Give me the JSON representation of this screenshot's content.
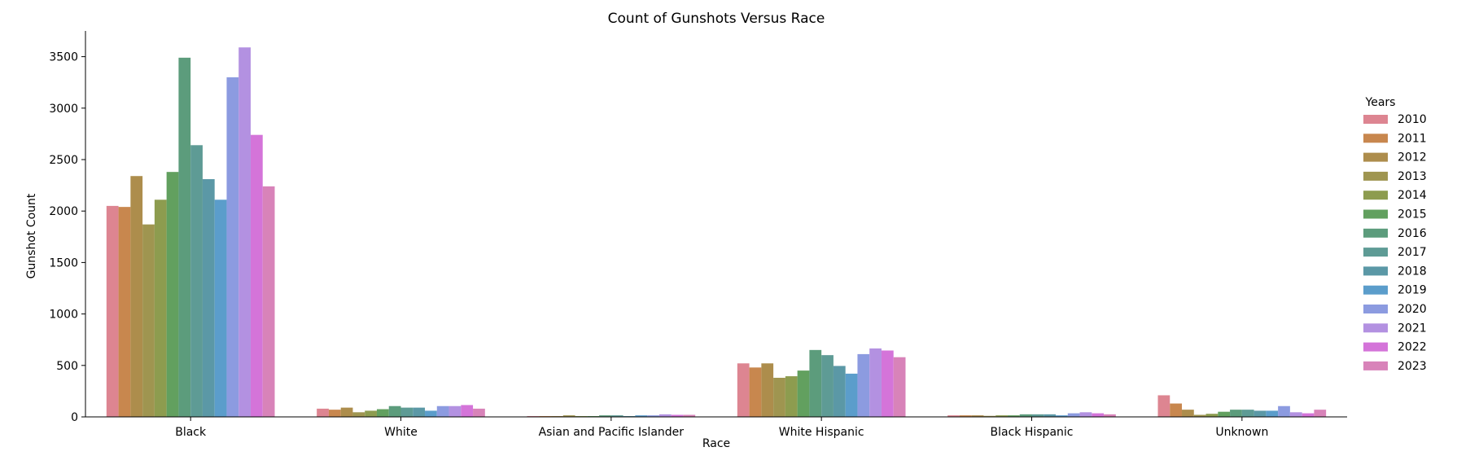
{
  "chart_data": {
    "type": "bar",
    "title": "Count of Gunshots Versus Race",
    "xlabel": "Race",
    "ylabel": "Gunshot Count",
    "ylim": [
      0,
      3750
    ],
    "yticks": [
      0,
      500,
      1000,
      1500,
      2000,
      2500,
      3000,
      3500
    ],
    "grid": false,
    "legend_title": "Years",
    "legend_position": "right",
    "categories": [
      "Black",
      "White",
      "Asian and Pacific Islander",
      "White Hispanic",
      "Black Hispanic",
      "Unknown"
    ],
    "series": [
      {
        "name": "2010",
        "color": "#dd8591",
        "values": [
          2050,
          80,
          8,
          520,
          15,
          210
        ]
      },
      {
        "name": "2011",
        "color": "#c8874e",
        "values": [
          2040,
          70,
          8,
          480,
          15,
          130
        ]
      },
      {
        "name": "2012",
        "color": "#ad8d4c",
        "values": [
          2340,
          90,
          8,
          520,
          15,
          70
        ]
      },
      {
        "name": "2013",
        "color": "#9f9550",
        "values": [
          1870,
          45,
          15,
          380,
          10,
          20
        ]
      },
      {
        "name": "2014",
        "color": "#8d9c4f",
        "values": [
          2110,
          60,
          8,
          395,
          15,
          30
        ]
      },
      {
        "name": "2015",
        "color": "#62a05f",
        "values": [
          2380,
          75,
          8,
          450,
          15,
          50
        ]
      },
      {
        "name": "2016",
        "color": "#5c9c7c",
        "values": [
          3490,
          105,
          15,
          650,
          25,
          70
        ]
      },
      {
        "name": "2017",
        "color": "#5e9b95",
        "values": [
          2640,
          90,
          15,
          600,
          25,
          70
        ]
      },
      {
        "name": "2018",
        "color": "#5b98a6",
        "values": [
          2310,
          90,
          8,
          495,
          25,
          60
        ]
      },
      {
        "name": "2019",
        "color": "#5b9dcb",
        "values": [
          2110,
          60,
          15,
          420,
          15,
          60
        ]
      },
      {
        "name": "2020",
        "color": "#8c9be0",
        "values": [
          3300,
          105,
          15,
          610,
          35,
          105
        ]
      },
      {
        "name": "2021",
        "color": "#b391e1",
        "values": [
          3590,
          105,
          25,
          665,
          45,
          45
        ]
      },
      {
        "name": "2022",
        "color": "#d474d9",
        "values": [
          2740,
          115,
          20,
          645,
          35,
          35
        ]
      },
      {
        "name": "2023",
        "color": "#d883b9",
        "values": [
          2240,
          80,
          20,
          580,
          25,
          70
        ]
      }
    ]
  }
}
